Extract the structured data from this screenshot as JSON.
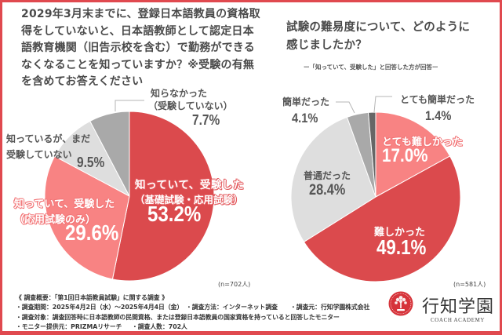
{
  "left_panel": {
    "title_lines": [
      "2029年3月末までに、登録日本語教員の資格取",
      "得をしていないと、日本語教師として認定日本",
      "語教育機関（旧告示校を含む）で勤務ができる",
      "なくなることを知っていますか？※受験の有無",
      "を含めてお答えください"
    ],
    "sample_size": "(n=702人)"
  },
  "right_panel": {
    "title_lines": [
      "試験の難易度について、どのように",
      "感じましたか？"
    ],
    "subtitle": "ー「知っていて、受験した」と回答した方が回答ー",
    "sample_size": "(n=581人)"
  },
  "footer": {
    "heading": "《 調査概要：「第1回日本語教員試験」に関する調査 》",
    "period": "・調査期間：2025年4月2日（水）～2025年4月4日（金）",
    "method": "・調査方法：インターネット調査",
    "source": "・調査元：行知学園株式会社",
    "target": "・調査対象：調査回答時に日本語教師の民間資格、または登録日本語教員の国家資格を持っていると回答したモニター",
    "monitor": "・モニター提供元：PRIZMAリサーチ",
    "respondents": "・調査人数：702人"
  },
  "logo": {
    "name": "行知学園",
    "subtitle": "COACH ACADEMY",
    "emblem_icon": "tree-emblem-icon"
  },
  "colors": {
    "frame": "#e0494f",
    "leader_line": "#b5b5b5",
    "slice_separator": "#ffffff"
  },
  "chart_data": [
    {
      "type": "pie",
      "title": "2029年3月末までに、登録日本語教員の資格取得をしていないと、日本語教師として認定日本語教育機関（旧告示校を含む）で勤務ができるなくなることを知っていますか？※受験の有無を含めてお答えください",
      "unit": "%",
      "n": 702,
      "start": "12 o'clock",
      "direction": "clockwise",
      "legend": "none (direct labels)",
      "slices": [
        {
          "label": "知っていて、受験した（基礎試験・応用試験）",
          "label_lines": [
            "知っていて、受験した",
            "（基礎試験・応用試験）"
          ],
          "value": 53.2,
          "value_text": "53.2%",
          "color": "#db4a4d"
        },
        {
          "label": "知っていて、受験した（応用試験のみ）",
          "label_lines": [
            "知っていて、受験した",
            "（応用試験のみ）"
          ],
          "value": 29.6,
          "value_text": "29.6%",
          "color": "#f88383"
        },
        {
          "label": "知っているが、まだ受験していない",
          "label_lines": [
            "知っているが、まだ",
            "受験していない"
          ],
          "value": 9.5,
          "value_text": "9.5%",
          "color": "#dedede"
        },
        {
          "label": "知らなかった（受験していない）",
          "label_lines": [
            "知らなかった",
            "（受験していない）"
          ],
          "value": 7.7,
          "value_text": "7.7%",
          "color": "#a9a9a9"
        }
      ]
    },
    {
      "type": "pie",
      "title": "試験の難易度について、どのように感じましたか？",
      "subtitle": "ー「知っていて、受験した」と回答した方が回答ー",
      "unit": "%",
      "n": 581,
      "start": "12 o'clock",
      "direction": "clockwise",
      "legend": "none (direct labels)",
      "slices": [
        {
          "label": "とても難しかった",
          "label_lines": [
            "とても難しかった"
          ],
          "value": 17.0,
          "value_text": "17.0%",
          "color": "#f88383"
        },
        {
          "label": "難しかった",
          "label_lines": [
            "難しかった"
          ],
          "value": 49.1,
          "value_text": "49.1%",
          "color": "#db4a4d"
        },
        {
          "label": "普通だった",
          "label_lines": [
            "普通だった"
          ],
          "value": 28.4,
          "value_text": "28.4%",
          "color": "#dedede"
        },
        {
          "label": "簡単だった",
          "label_lines": [
            "簡単だった"
          ],
          "value": 4.1,
          "value_text": "4.1%",
          "color": "#a9a9a9"
        },
        {
          "label": "とても簡単だった",
          "label_lines": [
            "とても簡単だった"
          ],
          "value": 1.4,
          "value_text": "1.4%",
          "color": "#666666"
        }
      ]
    }
  ]
}
